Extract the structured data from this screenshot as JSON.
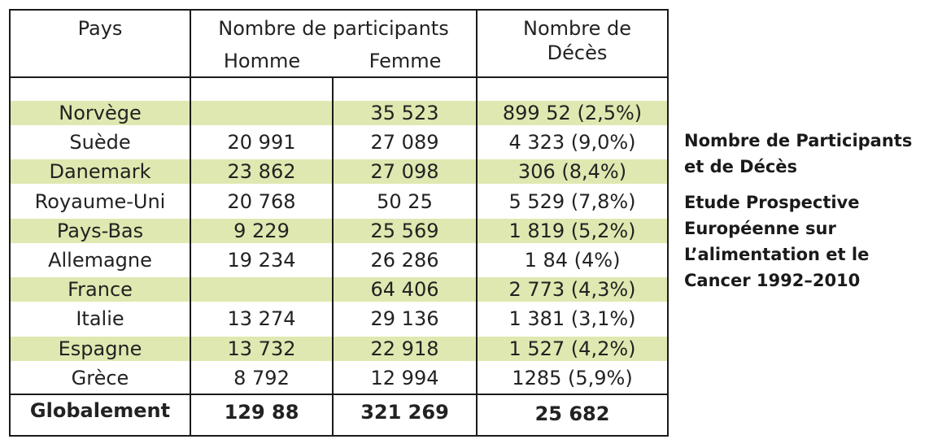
{
  "colors": {
    "band": "#dfe8b0",
    "border": "#1a1a1a"
  },
  "header": {
    "pays": "Pays",
    "participants": "Nombre de participants",
    "homme": "Homme",
    "femme": "Femme",
    "deces_line1": "Nombre de",
    "deces_line2": "Décès"
  },
  "rows": [
    {
      "pays": "Norvège",
      "homme": "",
      "femme": "35 523",
      "deces": "899 52 (2,5%)",
      "shaded": true
    },
    {
      "pays": "Suède",
      "homme": "20 991",
      "femme": "27 089",
      "deces": "4 323 (9,0%)",
      "shaded": false
    },
    {
      "pays": "Danemark",
      "homme": "23 862",
      "femme": "27 098",
      "deces": "306 (8,4%)",
      "shaded": true
    },
    {
      "pays": "Royaume-Uni",
      "homme": "20 768",
      "femme": "50 25",
      "deces": "5 529 (7,8%)",
      "shaded": false
    },
    {
      "pays": "Pays-Bas",
      "homme": "9 229",
      "femme": "25 569",
      "deces": "1 819 (5,2%)",
      "shaded": true
    },
    {
      "pays": "Allemagne",
      "homme": "19 234",
      "femme": "26 286",
      "deces": "1 84 (4%)",
      "shaded": false
    },
    {
      "pays": "France",
      "homme": "",
      "femme": "64 406",
      "deces": "2 773 (4,3%)",
      "shaded": true
    },
    {
      "pays": "Italie",
      "homme": "13 274",
      "femme": "29 136",
      "deces": "1 381 (3,1%)",
      "shaded": false
    },
    {
      "pays": "Espagne",
      "homme": "13 732",
      "femme": "22 918",
      "deces": "1 527 (4,2%)",
      "shaded": true
    },
    {
      "pays": "Grèce",
      "homme": "8 792",
      "femme": "12 994",
      "deces": "1285 (5,9%)",
      "shaded": false
    }
  ],
  "total": {
    "pays": "Globalement",
    "homme": "129 88",
    "femme": "321 269",
    "deces": "25 682"
  },
  "side": {
    "title_line1": "Nombre de Participants",
    "title_line2": "et de Décès",
    "sub_line1": "Etude Prospective",
    "sub_line2": "Européenne sur",
    "sub_line3": "L’alimentation et le",
    "sub_line4": "Cancer 1992–2010"
  }
}
